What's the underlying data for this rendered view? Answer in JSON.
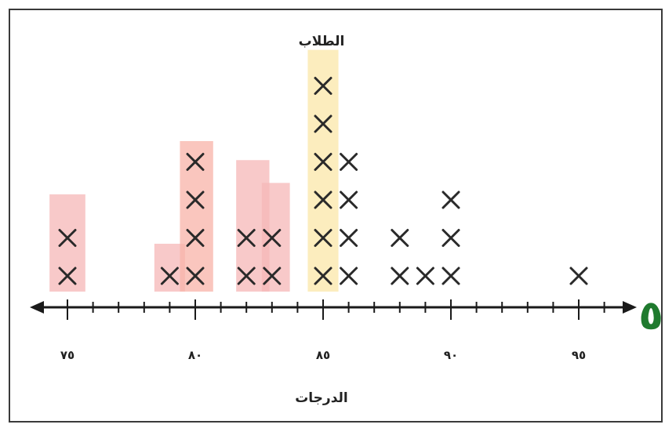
{
  "chart_data": {
    "type": "scatter",
    "subtype": "line-plot",
    "title": "الطلاب",
    "xlabel": "الدرجات",
    "xlim": [
      72,
      98
    ],
    "xticks": [
      75,
      80,
      85,
      90,
      95
    ],
    "xtick_labels": [
      "٧٥",
      "٨٠",
      "٨٥",
      "٩٠",
      "٩٥"
    ],
    "minor_tick_step": 1,
    "marker": "×",
    "points": [
      {
        "x": 75,
        "count": 2
      },
      {
        "x": 79,
        "count": 1
      },
      {
        "x": 80,
        "count": 4
      },
      {
        "x": 82,
        "count": 2
      },
      {
        "x": 83,
        "count": 2
      },
      {
        "x": 85,
        "count": 6
      },
      {
        "x": 86,
        "count": 4
      },
      {
        "x": 88,
        "count": 2
      },
      {
        "x": 89,
        "count": 1
      },
      {
        "x": 90,
        "count": 3
      },
      {
        "x": 95,
        "count": 1
      }
    ],
    "highlights": [
      {
        "x_from": 74.3,
        "x_to": 75.7,
        "height": 2.6,
        "color": "#f6b7b7"
      },
      {
        "x_from": 78.4,
        "x_to": 79.6,
        "height": 1.3,
        "color": "#f6b7b7"
      },
      {
        "x_from": 79.4,
        "x_to": 80.7,
        "height": 4.0,
        "color": "#f8b3a8"
      },
      {
        "x_from": 81.6,
        "x_to": 82.9,
        "height": 3.5,
        "color": "#f6b7b7"
      },
      {
        "x_from": 82.6,
        "x_to": 83.7,
        "height": 2.9,
        "color": "#f6b7b7"
      },
      {
        "x_from": 84.4,
        "x_to": 85.6,
        "height": 6.4,
        "color": "#fbe7a8"
      }
    ],
    "grid": false,
    "legend": "none",
    "annotations": [
      "٥"
    ],
    "colors": {
      "marker": "#2a2a2a",
      "axis": "#1a1a1a",
      "highlight_pink": "#f6b7b7",
      "highlight_yellow": "#fbe7a8",
      "annotation": "#1f7a2e"
    }
  }
}
